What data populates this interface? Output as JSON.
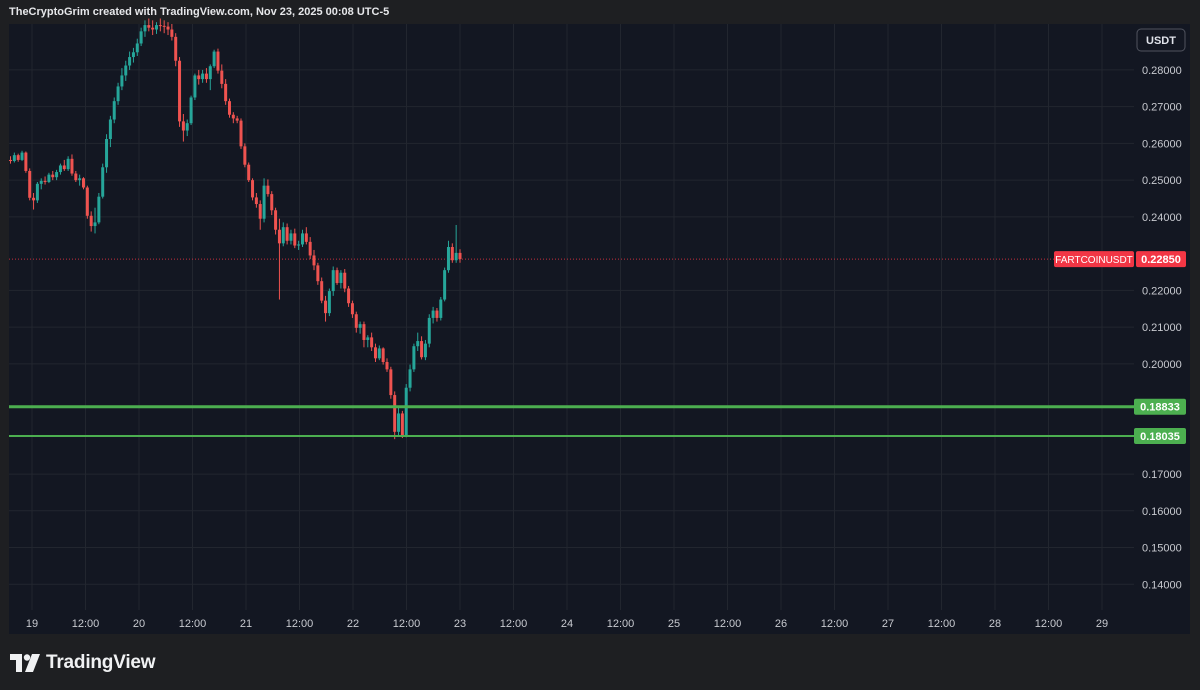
{
  "header": {
    "credit": "TheCryptoGrim created with TradingView.com, Nov 23, 2025 00:08 UTC-5"
  },
  "currency_badge": "USDT",
  "brand": {
    "name": "TradingView",
    "logo_icon": "tradingview-logo-icon"
  },
  "colors": {
    "background": "#131722",
    "frame": "#1e1f22",
    "grid": "#22262f",
    "up": "#26a69a",
    "down": "#ef5350",
    "support": "#4caf50",
    "price_tag": "#f23645"
  },
  "chart_data": {
    "type": "candlestick",
    "symbol": "FARTCOINUSDT",
    "quote_currency": "USDT",
    "last_price": 0.2285,
    "last_price_label": "0.22850",
    "ylim": [
      0.133,
      0.2925
    ],
    "y_ticks": [
      "0.28000",
      "0.27000",
      "0.26000",
      "0.25000",
      "0.24000",
      "0.22000",
      "0.21000",
      "0.20000",
      "0.17000",
      "0.16000",
      "0.15000",
      "0.14000"
    ],
    "x_ticks": [
      "19",
      "12:00",
      "20",
      "12:00",
      "21",
      "12:00",
      "22",
      "12:00",
      "23",
      "12:00",
      "24",
      "12:00",
      "25",
      "12:00",
      "26",
      "12:00",
      "27",
      "12:00",
      "28",
      "12:00",
      "29"
    ],
    "horizontal_lines": [
      {
        "value": 0.18833,
        "label": "0.18833",
        "color": "#4caf50"
      },
      {
        "value": 0.18035,
        "label": "0.18035",
        "color": "#4caf50"
      }
    ],
    "candles_ohlc": [
      [
        0.2555,
        0.2565,
        0.2545,
        0.2552
      ],
      [
        0.2552,
        0.2575,
        0.2548,
        0.2568
      ],
      [
        0.2568,
        0.2572,
        0.255,
        0.2555
      ],
      [
        0.2555,
        0.258,
        0.2552,
        0.2575
      ],
      [
        0.2575,
        0.2578,
        0.252,
        0.2525
      ],
      [
        0.2525,
        0.2532,
        0.2445,
        0.2452
      ],
      [
        0.2452,
        0.2465,
        0.242,
        0.2445
      ],
      [
        0.2445,
        0.2495,
        0.2438,
        0.249
      ],
      [
        0.249,
        0.2505,
        0.2475,
        0.2498
      ],
      [
        0.2498,
        0.251,
        0.2488,
        0.2495
      ],
      [
        0.2495,
        0.252,
        0.2492,
        0.2515
      ],
      [
        0.2515,
        0.2525,
        0.25,
        0.2508
      ],
      [
        0.2508,
        0.2528,
        0.25,
        0.2522
      ],
      [
        0.2522,
        0.2545,
        0.2515,
        0.254
      ],
      [
        0.254,
        0.2555,
        0.2525,
        0.253
      ],
      [
        0.253,
        0.2565,
        0.2525,
        0.2558
      ],
      [
        0.2558,
        0.257,
        0.2512,
        0.2518
      ],
      [
        0.2518,
        0.2525,
        0.2495,
        0.25
      ],
      [
        0.25,
        0.2515,
        0.2485,
        0.2505
      ],
      [
        0.2505,
        0.2508,
        0.2475,
        0.248
      ],
      [
        0.248,
        0.2485,
        0.2395,
        0.2403
      ],
      [
        0.2403,
        0.2415,
        0.236,
        0.2375
      ],
      [
        0.2375,
        0.2425,
        0.2355,
        0.2385
      ],
      [
        0.2385,
        0.2465,
        0.238,
        0.2455
      ],
      [
        0.2455,
        0.2545,
        0.245,
        0.2535
      ],
      [
        0.2535,
        0.2625,
        0.252,
        0.2612
      ],
      [
        0.2612,
        0.2675,
        0.259,
        0.2665
      ],
      [
        0.2665,
        0.2725,
        0.2655,
        0.2715
      ],
      [
        0.2715,
        0.2765,
        0.2705,
        0.2755
      ],
      [
        0.2755,
        0.2805,
        0.2745,
        0.2785
      ],
      [
        0.2785,
        0.2825,
        0.277,
        0.2812
      ],
      [
        0.2812,
        0.285,
        0.28,
        0.2835
      ],
      [
        0.2835,
        0.286,
        0.282,
        0.2848
      ],
      [
        0.2848,
        0.2885,
        0.2838,
        0.2872
      ],
      [
        0.2872,
        0.2915,
        0.2865,
        0.2905
      ],
      [
        0.2905,
        0.2935,
        0.289,
        0.2922
      ],
      [
        0.2922,
        0.294,
        0.2905,
        0.2915
      ],
      [
        0.2915,
        0.2935,
        0.2895,
        0.291
      ],
      [
        0.291,
        0.293,
        0.2898,
        0.2922
      ],
      [
        0.2922,
        0.294,
        0.2905,
        0.292
      ],
      [
        0.292,
        0.2935,
        0.29,
        0.2918
      ],
      [
        0.2918,
        0.293,
        0.2895,
        0.291
      ],
      [
        0.291,
        0.2925,
        0.288,
        0.289
      ],
      [
        0.289,
        0.29,
        0.281,
        0.2825
      ],
      [
        0.2825,
        0.2835,
        0.2645,
        0.266
      ],
      [
        0.266,
        0.268,
        0.2605,
        0.2635
      ],
      [
        0.2635,
        0.2665,
        0.262,
        0.2655
      ],
      [
        0.2655,
        0.273,
        0.265,
        0.2725
      ],
      [
        0.2725,
        0.279,
        0.2718,
        0.2785
      ],
      [
        0.2785,
        0.28,
        0.276,
        0.2775
      ],
      [
        0.2775,
        0.28,
        0.2765,
        0.279
      ],
      [
        0.279,
        0.2805,
        0.2765,
        0.2775
      ],
      [
        0.2775,
        0.2815,
        0.2745,
        0.281
      ],
      [
        0.281,
        0.2855,
        0.2805,
        0.285
      ],
      [
        0.285,
        0.2858,
        0.279,
        0.2798
      ],
      [
        0.2798,
        0.2815,
        0.275,
        0.2762
      ],
      [
        0.2762,
        0.2775,
        0.2705,
        0.2715
      ],
      [
        0.2715,
        0.2722,
        0.267,
        0.2678
      ],
      [
        0.2678,
        0.2685,
        0.2655,
        0.2668
      ],
      [
        0.2668,
        0.2675,
        0.2655,
        0.2662
      ],
      [
        0.2662,
        0.2668,
        0.2585,
        0.2592
      ],
      [
        0.2592,
        0.26,
        0.2535,
        0.2542
      ],
      [
        0.2542,
        0.2548,
        0.2495,
        0.25
      ],
      [
        0.25,
        0.2505,
        0.2445,
        0.2453
      ],
      [
        0.2453,
        0.2465,
        0.2425,
        0.2435
      ],
      [
        0.2435,
        0.2445,
        0.2365,
        0.2395
      ],
      [
        0.2395,
        0.2505,
        0.2385,
        0.2485
      ],
      [
        0.2485,
        0.2502,
        0.2455,
        0.2462
      ],
      [
        0.2462,
        0.247,
        0.2405,
        0.2418
      ],
      [
        0.2418,
        0.2425,
        0.2352,
        0.2365
      ],
      [
        0.2365,
        0.2395,
        0.2175,
        0.2328
      ],
      [
        0.2328,
        0.2385,
        0.232,
        0.2372
      ],
      [
        0.2372,
        0.2382,
        0.2325,
        0.2335
      ],
      [
        0.2335,
        0.2365,
        0.2325,
        0.2355
      ],
      [
        0.2355,
        0.2368,
        0.2315,
        0.2322
      ],
      [
        0.2322,
        0.2335,
        0.231,
        0.2325
      ],
      [
        0.2325,
        0.2365,
        0.2318,
        0.2355
      ],
      [
        0.2355,
        0.2372,
        0.2325,
        0.2332
      ],
      [
        0.2332,
        0.2345,
        0.2285,
        0.2295
      ],
      [
        0.2295,
        0.231,
        0.2255,
        0.2268
      ],
      [
        0.2268,
        0.2275,
        0.2215,
        0.2225
      ],
      [
        0.2225,
        0.2235,
        0.2165,
        0.2172
      ],
      [
        0.2172,
        0.2185,
        0.2115,
        0.2138
      ],
      [
        0.2138,
        0.2205,
        0.213,
        0.2198
      ],
      [
        0.2198,
        0.2265,
        0.2185,
        0.2255
      ],
      [
        0.2255,
        0.2262,
        0.2215,
        0.222
      ],
      [
        0.222,
        0.2255,
        0.2205,
        0.2248
      ],
      [
        0.2248,
        0.2258,
        0.2195,
        0.2205
      ],
      [
        0.2205,
        0.2212,
        0.2155,
        0.2165
      ],
      [
        0.2165,
        0.2172,
        0.2125,
        0.2135
      ],
      [
        0.2135,
        0.2142,
        0.2085,
        0.2098
      ],
      [
        0.2098,
        0.2115,
        0.2082,
        0.2108
      ],
      [
        0.2108,
        0.2115,
        0.2045,
        0.2065
      ],
      [
        0.2065,
        0.2078,
        0.2045,
        0.2072
      ],
      [
        0.2072,
        0.2085,
        0.2035,
        0.2045
      ],
      [
        0.2045,
        0.2055,
        0.2005,
        0.2015
      ],
      [
        0.2015,
        0.205,
        0.201,
        0.2042
      ],
      [
        0.2042,
        0.2045,
        0.1998,
        0.2005
      ],
      [
        0.2005,
        0.2015,
        0.1978,
        0.1985
      ],
      [
        0.1985,
        0.1992,
        0.1905,
        0.1915
      ],
      [
        0.1915,
        0.1925,
        0.1795,
        0.1815
      ],
      [
        0.1815,
        0.1885,
        0.1805,
        0.1865
      ],
      [
        0.1865,
        0.1872,
        0.1798,
        0.1805
      ],
      [
        0.1805,
        0.1945,
        0.18,
        0.1935
      ],
      [
        0.1935,
        0.1998,
        0.1925,
        0.1985
      ],
      [
        0.1985,
        0.2055,
        0.1978,
        0.2048
      ],
      [
        0.2048,
        0.2085,
        0.2035,
        0.2062
      ],
      [
        0.2062,
        0.2075,
        0.2012,
        0.2018
      ],
      [
        0.2018,
        0.2065,
        0.201,
        0.2055
      ],
      [
        0.2055,
        0.2135,
        0.2045,
        0.2125
      ],
      [
        0.2125,
        0.2155,
        0.211,
        0.2145
      ],
      [
        0.2145,
        0.2152,
        0.2115,
        0.2125
      ],
      [
        0.2125,
        0.2182,
        0.2118,
        0.2175
      ],
      [
        0.2175,
        0.2262,
        0.217,
        0.2255
      ],
      [
        0.2255,
        0.2335,
        0.2248,
        0.2318
      ],
      [
        0.2318,
        0.2328,
        0.2275,
        0.2282
      ],
      [
        0.2282,
        0.2378,
        0.2275,
        0.2302
      ],
      [
        0.2302,
        0.2312,
        0.2275,
        0.2285
      ]
    ]
  }
}
